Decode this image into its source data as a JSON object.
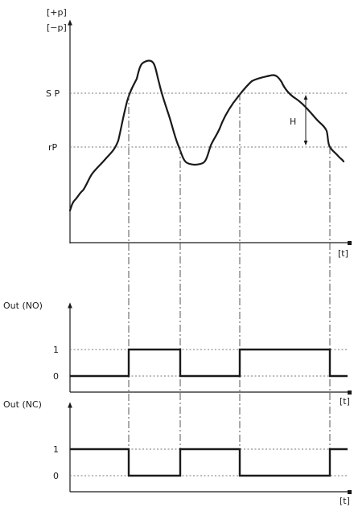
{
  "pressure_panel": {
    "y_label_pos": "[+p]",
    "y_label_neg": "[−p]",
    "sp_label": "S P",
    "rp_label": "rP",
    "hysteresis_label": "H",
    "t_label": "[t]"
  },
  "no_panel": {
    "title": "Out (NO)",
    "level_1": "1",
    "level_0": "0",
    "t_label": "[t]"
  },
  "nc_panel": {
    "title": "Out (NC)",
    "level_1": "1",
    "level_0": "0",
    "t_label": "[t]"
  },
  "icons": {
    "axis_arrow": "arrow-up-icon",
    "hysteresis_arrow": "double-arrow-vertical-icon"
  }
}
